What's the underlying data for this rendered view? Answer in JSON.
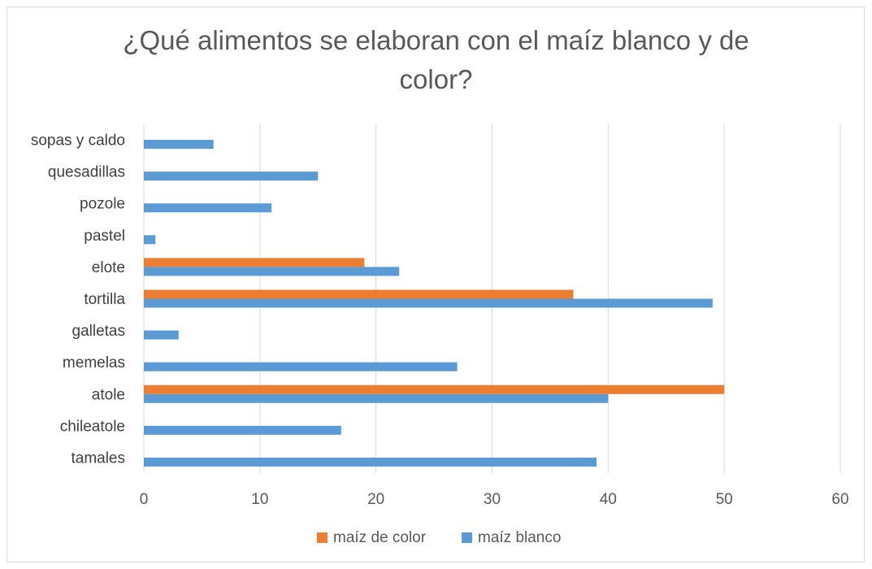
{
  "chart_data": {
    "type": "bar",
    "orientation": "horizontal",
    "title": "¿Qué alimentos se elaboran con el maíz blanco y de color?",
    "categories": [
      "tamales",
      "chileatole",
      "atole",
      "memelas",
      "galletas",
      "tortilla",
      "elote",
      "pastel",
      "pozole",
      "quesadillas",
      "sopas y caldo"
    ],
    "series": [
      {
        "name": "maíz blanco",
        "color": "#5b9bd5",
        "values": [
          39,
          17,
          40,
          27,
          3,
          49,
          22,
          1,
          11,
          15,
          6
        ]
      },
      {
        "name": "maíz de color",
        "color": "#ed7d31",
        "values": [
          0,
          0,
          50,
          0,
          0,
          37,
          19,
          0,
          0,
          0,
          0
        ]
      }
    ],
    "xlim": [
      0,
      60
    ],
    "xticks": [
      0,
      10,
      20,
      30,
      40,
      50,
      60
    ],
    "grid": true,
    "legend": {
      "position": "bottom",
      "order": [
        "maíz de color",
        "maíz blanco"
      ]
    }
  }
}
